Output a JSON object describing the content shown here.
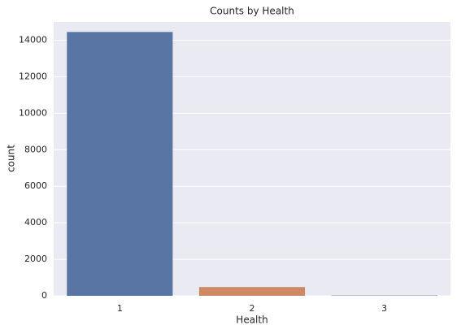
{
  "chart_data": {
    "type": "bar",
    "title": "Counts by Health",
    "x_label": "Health",
    "y_label": "count",
    "categories": [
      "1",
      "2",
      "3"
    ],
    "values": [
      14450,
      480,
      20
    ],
    "colors": [
      "#5975a4",
      "#cc8963",
      "#5f9e6e"
    ],
    "ylim": [
      0,
      15000
    ],
    "yticks": [
      0,
      2000,
      4000,
      6000,
      8000,
      10000,
      12000,
      14000
    ],
    "grid": true
  }
}
